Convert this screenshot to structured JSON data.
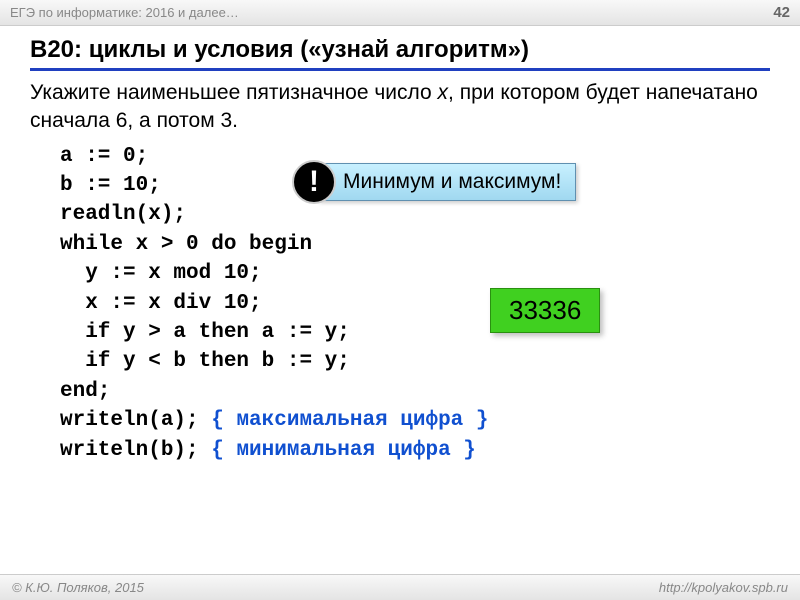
{
  "header": {
    "left": "ЕГЭ по информатике: 2016 и далее…",
    "page": "42"
  },
  "title": "B20: циклы и условия («узнай алгоритм»)",
  "task": {
    "line1": "Укажите наименьшее пятизначное число ",
    "var": "x",
    "line2": ", при котором будет напечатано сначала 6, а потом 3."
  },
  "code": {
    "l1": "a := 0;",
    "l2": "b := 10;",
    "l3": "readln(x);",
    "l4": "while x > 0 do begin",
    "l5": "  y := x mod 10;",
    "l6": "  x := x div 10;",
    "l7": "  if y > a then a := y;",
    "l8": "  if y < b then b := y;",
    "l9": "end;",
    "l10a": "writeln(a); ",
    "c10": "{ максимальная цифра }",
    "l11a": "writeln(b); ",
    "c11": "{ минимальная цифра }"
  },
  "hint": {
    "mark": "!",
    "text": "Минимум и максимум!"
  },
  "answer": "33336",
  "footer": {
    "left": "© К.Ю. Поляков, 2015",
    "right": "http://kpolyakov.spb.ru"
  },
  "colors": {
    "title_underline": "#2040c0",
    "comment": "#1050d0",
    "hint_bg": "#a0d8f0",
    "answer_bg": "#40d020"
  }
}
